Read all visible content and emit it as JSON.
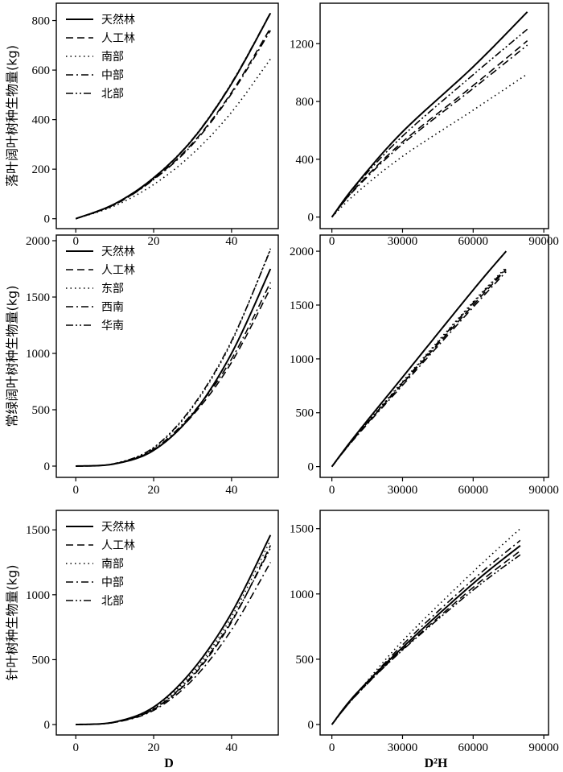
{
  "figure": {
    "x_label_left": "D",
    "x_label_right": "D²H"
  },
  "chart_data": [
    {
      "id": "r1_left",
      "type": "line",
      "ylabel": "落叶阔叶树种生物量(kg)",
      "xlabel": "",
      "xlim": [
        -5,
        52
      ],
      "ylim": [
        -40,
        870
      ],
      "xticks": [
        0,
        20,
        40
      ],
      "yticks": [
        0,
        200,
        400,
        600,
        800
      ],
      "legend": "top-left",
      "series": [
        {
          "name": "天然林",
          "style": "solid",
          "x": [
            0,
            10,
            20,
            30,
            40,
            50
          ],
          "y": [
            0,
            60,
            165,
            320,
            545,
            830
          ]
        },
        {
          "name": "人工林",
          "style": "dash",
          "x": [
            0,
            10,
            20,
            30,
            40,
            50
          ],
          "y": [
            0,
            58,
            160,
            305,
            510,
            770
          ]
        },
        {
          "name": "南部",
          "style": "dot",
          "x": [
            0,
            10,
            20,
            30,
            40,
            50
          ],
          "y": [
            0,
            52,
            138,
            262,
            430,
            645
          ]
        },
        {
          "name": "中部",
          "style": "dashdot",
          "x": [
            0,
            10,
            20,
            30,
            40,
            50
          ],
          "y": [
            0,
            57,
            158,
            300,
            505,
            760
          ]
        },
        {
          "name": "北部",
          "style": "dashdotdot",
          "x": [
            0,
            10,
            20,
            30,
            40,
            50
          ],
          "y": [
            0,
            60,
            166,
            322,
            548,
            832
          ]
        }
      ]
    },
    {
      "id": "r1_right",
      "type": "line",
      "ylabel": "",
      "xlabel": "",
      "xlim": [
        -5000,
        92000
      ],
      "ylim": [
        -80,
        1480
      ],
      "xticks": [
        0,
        30000,
        60000,
        90000
      ],
      "yticks": [
        0,
        400,
        800,
        1200
      ],
      "legend": "none",
      "series": [
        {
          "name": "天然林",
          "style": "solid",
          "x": [
            0,
            10000,
            30000,
            60000,
            83000
          ],
          "y": [
            0,
            220,
            590,
            1040,
            1420
          ]
        },
        {
          "name": "人工林",
          "style": "dash",
          "x": [
            0,
            10000,
            30000,
            60000,
            83000
          ],
          "y": [
            0,
            200,
            520,
            910,
            1220
          ]
        },
        {
          "name": "南部",
          "style": "dot",
          "x": [
            0,
            10000,
            30000,
            60000,
            83000
          ],
          "y": [
            0,
            160,
            420,
            740,
            990
          ]
        },
        {
          "name": "中部",
          "style": "dashdot",
          "x": [
            0,
            10000,
            30000,
            60000,
            83000
          ],
          "y": [
            0,
            195,
            505,
            890,
            1190
          ]
        },
        {
          "name": "北部",
          "style": "dashdotdot",
          "x": [
            0,
            10000,
            30000,
            60000,
            83000
          ],
          "y": [
            0,
            215,
            560,
            985,
            1300
          ]
        }
      ]
    },
    {
      "id": "r2_left",
      "type": "line",
      "ylabel": "常绿阔叶树种生物量(kg)",
      "xlabel": "",
      "xlim": [
        -5,
        52
      ],
      "ylim": [
        -100,
        2050
      ],
      "xticks": [
        0,
        20,
        40
      ],
      "yticks": [
        0,
        500,
        1000,
        1500,
        2000
      ],
      "legend": "top-left",
      "series": [
        {
          "name": "天然林",
          "style": "solid",
          "x": [
            0,
            10,
            20,
            30,
            40,
            50
          ],
          "y": [
            0,
            20,
            140,
            460,
            1000,
            1750
          ]
        },
        {
          "name": "人工林",
          "style": "dash",
          "x": [
            0,
            10,
            20,
            30,
            40,
            50
          ],
          "y": [
            0,
            20,
            145,
            450,
            920,
            1580
          ]
        },
        {
          "name": "东部",
          "style": "dot",
          "x": [
            0,
            10,
            20,
            30,
            40,
            50
          ],
          "y": [
            0,
            22,
            160,
            520,
            1100,
            1930
          ]
        },
        {
          "name": "西南",
          "style": "dashdot",
          "x": [
            0,
            10,
            20,
            30,
            40,
            50
          ],
          "y": [
            0,
            21,
            150,
            470,
            950,
            1630
          ]
        },
        {
          "name": "华南",
          "style": "dashdotdot",
          "x": [
            0,
            10,
            20,
            30,
            40,
            50
          ],
          "y": [
            0,
            23,
            165,
            530,
            1110,
            1920
          ]
        }
      ]
    },
    {
      "id": "r2_right",
      "type": "line",
      "ylabel": "",
      "xlabel": "",
      "xlim": [
        -5000,
        92000
      ],
      "ylim": [
        -100,
        2150
      ],
      "xticks": [
        0,
        30000,
        60000,
        90000
      ],
      "yticks": [
        0,
        500,
        1000,
        1500,
        2000
      ],
      "legend": "none",
      "series": [
        {
          "name": "天然林",
          "style": "solid",
          "x": [
            0,
            10000,
            30000,
            60000,
            74000
          ],
          "y": [
            0,
            290,
            830,
            1640,
            2000
          ]
        },
        {
          "name": "人工林",
          "style": "dash",
          "x": [
            0,
            10000,
            30000,
            60000,
            74000
          ],
          "y": [
            0,
            275,
            770,
            1500,
            1830
          ]
        },
        {
          "name": "东部",
          "style": "dot",
          "x": [
            0,
            10000,
            30000,
            60000,
            74000
          ],
          "y": [
            0,
            280,
            790,
            1530,
            1850
          ]
        },
        {
          "name": "西南",
          "style": "dashdot",
          "x": [
            0,
            10000,
            30000,
            60000,
            74000
          ],
          "y": [
            0,
            270,
            755,
            1480,
            1810
          ]
        },
        {
          "name": "华南",
          "style": "dashdotdot",
          "x": [
            0,
            10000,
            30000,
            60000,
            74000
          ],
          "y": [
            0,
            278,
            780,
            1520,
            1840
          ]
        }
      ]
    },
    {
      "id": "r3_left",
      "type": "line",
      "ylabel": "针叶树种生物量(kg)",
      "xlabel": "D",
      "xlim": [
        -5,
        52
      ],
      "ylim": [
        -80,
        1650
      ],
      "xticks": [
        0,
        20,
        40
      ],
      "yticks": [
        0,
        500,
        1000,
        1500
      ],
      "legend": "top-left",
      "series": [
        {
          "name": "天然林",
          "style": "solid",
          "x": [
            0,
            10,
            20,
            30,
            40,
            50
          ],
          "y": [
            0,
            20,
            135,
            420,
            860,
            1460
          ]
        },
        {
          "name": "人工林",
          "style": "dash",
          "x": [
            0,
            10,
            20,
            30,
            40,
            50
          ],
          "y": [
            0,
            18,
            118,
            370,
            790,
            1380
          ]
        },
        {
          "name": "南部",
          "style": "dot",
          "x": [
            0,
            10,
            20,
            30,
            40,
            50
          ],
          "y": [
            0,
            19,
            130,
            400,
            830,
            1420
          ]
        },
        {
          "name": "中部",
          "style": "dashdot",
          "x": [
            0,
            10,
            20,
            30,
            40,
            50
          ],
          "y": [
            0,
            17,
            110,
            345,
            730,
            1250
          ]
        },
        {
          "name": "北部",
          "style": "dashdotdot",
          "x": [
            0,
            10,
            20,
            30,
            40,
            50
          ],
          "y": [
            0,
            18,
            120,
            380,
            800,
            1360
          ]
        }
      ]
    },
    {
      "id": "r3_right",
      "type": "line",
      "ylabel": "",
      "xlabel": "D²H",
      "xlim": [
        -5000,
        92000
      ],
      "ylim": [
        -80,
        1640
      ],
      "xticks": [
        0,
        30000,
        60000,
        90000
      ],
      "yticks": [
        0,
        500,
        1000,
        1500
      ],
      "legend": "none",
      "series": [
        {
          "name": "天然林",
          "style": "solid",
          "x": [
            0,
            10000,
            30000,
            60000,
            80000
          ],
          "y": [
            0,
            230,
            590,
            1080,
            1370
          ]
        },
        {
          "name": "人工林",
          "style": "dash",
          "x": [
            0,
            10000,
            30000,
            60000,
            80000
          ],
          "y": [
            0,
            220,
            575,
            1050,
            1330
          ]
        },
        {
          "name": "南部",
          "style": "dot",
          "x": [
            0,
            10000,
            30000,
            60000,
            80000
          ],
          "y": [
            0,
            225,
            640,
            1170,
            1500
          ]
        },
        {
          "name": "中部",
          "style": "dashdot",
          "x": [
            0,
            10000,
            30000,
            60000,
            80000
          ],
          "y": [
            0,
            222,
            610,
            1110,
            1410
          ]
        },
        {
          "name": "北部",
          "style": "dashdotdot",
          "x": [
            0,
            10000,
            30000,
            60000,
            80000
          ],
          "y": [
            0,
            218,
            570,
            1030,
            1300
          ]
        }
      ]
    }
  ]
}
